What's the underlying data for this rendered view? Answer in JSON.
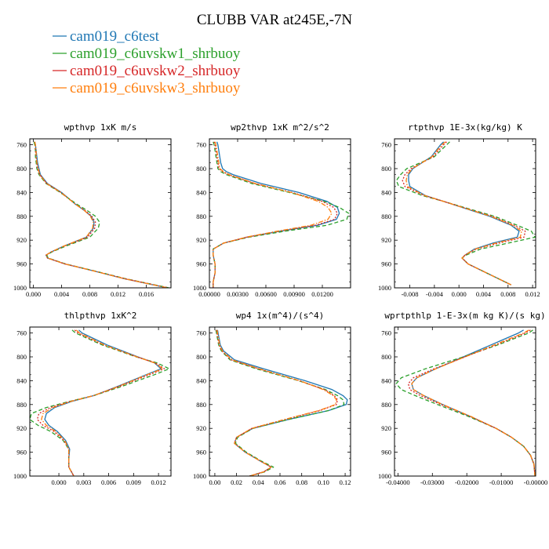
{
  "figure": {
    "title": "CLUBB VAR at245E,-7N"
  },
  "series": [
    {
      "name": "cam019_c6test",
      "color": "#1f77b4",
      "dash": "solid"
    },
    {
      "name": "cam019_c6uvskw1_shrbuoy",
      "color": "#2ca02c",
      "dash": "dash"
    },
    {
      "name": "cam019_c6uvskw2_shrbuoy",
      "color": "#d62728",
      "dash": "dot"
    },
    {
      "name": "cam019_c6uvskw3_shrbuoy",
      "color": "#ff7f0e",
      "dash": "dashdot"
    }
  ],
  "chart_data": [
    {
      "type": "line",
      "title": "wpthvp  1xK m/s",
      "ylim": [
        1000,
        750
      ],
      "yticks": [
        760,
        800,
        840,
        880,
        920,
        960,
        1000
      ],
      "xlim": [
        -0.0005,
        0.0195
      ],
      "xticks": [
        0.0,
        0.004,
        0.008,
        0.012,
        0.016
      ],
      "xticklabels": [
        "0.000",
        "0.004",
        "0.008",
        "0.012",
        "0.016"
      ],
      "y": [
        755,
        760,
        770,
        780,
        790,
        800,
        810,
        825,
        840,
        860,
        870,
        880,
        890,
        900,
        915,
        930,
        940,
        945,
        950,
        960,
        970,
        985,
        1000
      ],
      "series": [
        {
          "name": "cam019_c6test",
          "values": [
            0.0002,
            0.0003,
            0.0004,
            0.0005,
            0.0006,
            0.0008,
            0.001,
            0.002,
            0.004,
            0.006,
            0.0072,
            0.0082,
            0.0086,
            0.0085,
            0.0075,
            0.0043,
            0.0025,
            0.0018,
            0.002,
            0.0045,
            0.008,
            0.013,
            0.019
          ]
        },
        {
          "name": "cam019_c6uvskw1_shrbuoy",
          "values": [
            0.0001,
            0.0002,
            0.0003,
            0.0003,
            0.0004,
            0.0005,
            0.0008,
            0.0018,
            0.0038,
            0.0062,
            0.0076,
            0.0088,
            0.0094,
            0.0092,
            0.008,
            0.0046,
            0.0026,
            0.0019,
            0.0021,
            0.0046,
            0.0081,
            0.0132,
            0.0192
          ]
        },
        {
          "name": "cam019_c6uvskw2_shrbuoy",
          "values": [
            0.0002,
            0.0003,
            0.0003,
            0.0004,
            0.0005,
            0.0006,
            0.0009,
            0.0019,
            0.0039,
            0.006,
            0.0073,
            0.0083,
            0.0088,
            0.0087,
            0.0077,
            0.0044,
            0.0025,
            0.0018,
            0.002,
            0.0045,
            0.008,
            0.0131,
            0.0191
          ]
        },
        {
          "name": "cam019_c6uvskw3_shrbuoy",
          "values": [
            0.0002,
            0.0003,
            0.0004,
            0.0004,
            0.0005,
            0.0007,
            0.0009,
            0.0019,
            0.0039,
            0.006,
            0.0072,
            0.0081,
            0.0085,
            0.0084,
            0.0075,
            0.0043,
            0.0025,
            0.0018,
            0.002,
            0.0045,
            0.008,
            0.013,
            0.019
          ]
        }
      ]
    },
    {
      "type": "line",
      "title": "wp2thvp  1xK m^2/s^2",
      "ylim": [
        1000,
        750
      ],
      "yticks": [
        760,
        800,
        840,
        880,
        920,
        960,
        1000
      ],
      "xlim": [
        0.0,
        0.015
      ],
      "xticks": [
        0.0,
        0.003,
        0.006,
        0.009,
        0.012
      ],
      "xticklabels": [
        "0.00000",
        "0.00300",
        "0.00600",
        "0.00900",
        "0.01200"
      ],
      "y": [
        755,
        760,
        770,
        780,
        790,
        800,
        805,
        810,
        825,
        840,
        855,
        865,
        875,
        885,
        895,
        905,
        915,
        925,
        935,
        945,
        960,
        975,
        990,
        1000
      ],
      "series": [
        {
          "name": "cam019_c6test",
          "values": [
            0.0008,
            0.0009,
            0.001,
            0.0011,
            0.0012,
            0.0014,
            0.0018,
            0.0025,
            0.0055,
            0.0095,
            0.0125,
            0.0136,
            0.0138,
            0.0135,
            0.0115,
            0.0075,
            0.004,
            0.0015,
            0.0004,
            0.0004,
            0.0006,
            0.0006,
            0.0004,
            0.0004
          ]
        },
        {
          "name": "cam019_c6uvskw1_shrbuoy",
          "values": [
            0.0004,
            0.0005,
            0.0006,
            0.0007,
            0.0008,
            0.0009,
            0.0012,
            0.0018,
            0.0045,
            0.0085,
            0.0122,
            0.0138,
            0.0148,
            0.0146,
            0.0125,
            0.008,
            0.0042,
            0.0015,
            0.0004,
            0.0004,
            0.0006,
            0.0006,
            0.0004,
            0.0004
          ]
        },
        {
          "name": "cam019_c6uvskw2_shrbuoy",
          "values": [
            0.0005,
            0.0006,
            0.0007,
            0.0008,
            0.0009,
            0.001,
            0.0014,
            0.002,
            0.0048,
            0.0088,
            0.012,
            0.0132,
            0.0136,
            0.0133,
            0.0113,
            0.0074,
            0.004,
            0.0015,
            0.0004,
            0.0004,
            0.0006,
            0.0006,
            0.0004,
            0.0004
          ]
        },
        {
          "name": "cam019_c6uvskw3_shrbuoy",
          "values": [
            0.0006,
            0.0007,
            0.0008,
            0.0009,
            0.001,
            0.0011,
            0.0015,
            0.0021,
            0.0049,
            0.0087,
            0.0116,
            0.0126,
            0.013,
            0.0126,
            0.0108,
            0.0072,
            0.0039,
            0.0015,
            0.0004,
            0.0004,
            0.0006,
            0.0006,
            0.0004,
            0.0004
          ]
        }
      ]
    },
    {
      "type": "line",
      "title": "rtpthvp  1E-3x(kg/kg) K",
      "ylim": [
        1000,
        750
      ],
      "yticks": [
        760,
        800,
        840,
        880,
        920,
        960,
        1000
      ],
      "xlim": [
        -0.0105,
        0.0125
      ],
      "xticks": [
        -0.008,
        -0.004,
        0.0,
        0.004,
        0.008,
        0.012
      ],
      "xticklabels": [
        "-0.008",
        "-0.004",
        "0.000",
        "0.004",
        "0.008",
        "0.012"
      ],
      "y": [
        755,
        760,
        780,
        800,
        810,
        820,
        830,
        845,
        855,
        870,
        880,
        895,
        905,
        915,
        925,
        935,
        945,
        950,
        960,
        975,
        995
      ],
      "series": [
        {
          "name": "cam019_c6test",
          "values": [
            -0.0025,
            -0.003,
            -0.0045,
            -0.0075,
            -0.0082,
            -0.0082,
            -0.008,
            -0.0055,
            -0.0025,
            0.002,
            0.005,
            0.0085,
            0.0098,
            0.0095,
            0.0055,
            0.0025,
            0.001,
            0.0005,
            0.0015,
            0.0045,
            0.0085
          ]
        },
        {
          "name": "cam019_c6uvskw1_shrbuoy",
          "values": [
            -0.0015,
            -0.002,
            -0.004,
            -0.0085,
            -0.0095,
            -0.0102,
            -0.0098,
            -0.006,
            -0.0025,
            0.0025,
            0.0058,
            0.0095,
            0.0118,
            0.0124,
            0.008,
            0.0035,
            0.0012,
            0.0005,
            0.0015,
            0.0045,
            0.0085
          ]
        },
        {
          "name": "cam019_c6uvskw2_shrbuoy",
          "values": [
            -0.002,
            -0.0025,
            -0.0042,
            -0.0078,
            -0.0088,
            -0.0092,
            -0.0088,
            -0.0057,
            -0.0025,
            0.0022,
            0.0054,
            0.009,
            0.0108,
            0.0106,
            0.0065,
            0.0028,
            0.001,
            0.0005,
            0.0015,
            0.0045,
            0.0085
          ]
        },
        {
          "name": "cam019_c6uvskw3_shrbuoy",
          "values": [
            -0.0022,
            -0.0028,
            -0.0044,
            -0.0076,
            -0.0084,
            -0.0086,
            -0.0084,
            -0.0056,
            -0.0025,
            0.0021,
            0.0052,
            0.0087,
            0.0102,
            0.01,
            0.006,
            0.0026,
            0.001,
            0.0005,
            0.0015,
            0.0045,
            0.0085
          ]
        }
      ]
    },
    {
      "type": "line",
      "title": "thlpthvp  1xK^2",
      "ylim": [
        1000,
        750
      ],
      "yticks": [
        760,
        800,
        840,
        880,
        920,
        960,
        1000
      ],
      "xlim": [
        -0.0035,
        0.0135
      ],
      "xticks": [
        0.0,
        0.003,
        0.006,
        0.009,
        0.012
      ],
      "xticklabels": [
        "0.000",
        "0.003",
        "0.006",
        "0.009",
        "0.012"
      ],
      "y": [
        755,
        760,
        780,
        800,
        810,
        820,
        830,
        850,
        865,
        875,
        885,
        895,
        905,
        915,
        925,
        940,
        955,
        970,
        985,
        1000
      ],
      "series": [
        {
          "name": "cam019_c6test",
          "values": [
            0.0024,
            0.0028,
            0.0058,
            0.0095,
            0.0115,
            0.0123,
            0.0105,
            0.007,
            0.0042,
            0.0015,
            -0.0005,
            -0.0015,
            -0.0017,
            -0.0012,
            -0.0002,
            0.0008,
            0.0013,
            0.0012,
            0.0012,
            0.0018
          ]
        },
        {
          "name": "cam019_c6uvskw1_shrbuoy",
          "values": [
            0.0016,
            0.002,
            0.0052,
            0.0093,
            0.0118,
            0.0133,
            0.0115,
            0.0075,
            0.0042,
            0.0012,
            -0.0015,
            -0.0033,
            -0.0035,
            -0.0025,
            -0.001,
            0.0005,
            0.0012,
            0.0012,
            0.0012,
            0.0018
          ]
        },
        {
          "name": "cam019_c6uvskw2_shrbuoy",
          "values": [
            0.0019,
            0.0023,
            0.0054,
            0.0094,
            0.0116,
            0.0127,
            0.0109,
            0.0072,
            0.0042,
            0.0013,
            -0.001,
            -0.0024,
            -0.0026,
            -0.0019,
            -0.0006,
            0.0006,
            0.0012,
            0.0012,
            0.0012,
            0.0018
          ]
        },
        {
          "name": "cam019_c6uvskw3_shrbuoy",
          "values": [
            0.0021,
            0.0025,
            0.0055,
            0.0094,
            0.0115,
            0.0125,
            0.0106,
            0.0071,
            0.0042,
            0.0014,
            -0.0007,
            -0.0019,
            -0.0021,
            -0.0015,
            -0.0004,
            0.0007,
            0.0012,
            0.0012,
            0.0012,
            0.0018
          ]
        }
      ]
    },
    {
      "type": "line",
      "title": "wp4  1x(m^4)/(s^4)",
      "ylim": [
        1000,
        750
      ],
      "yticks": [
        760,
        800,
        840,
        880,
        920,
        960,
        1000
      ],
      "xlim": [
        -0.005,
        0.125
      ],
      "xticks": [
        0.0,
        0.02,
        0.04,
        0.06,
        0.08,
        0.1,
        0.12
      ],
      "xticklabels": [
        "0.00",
        "0.02",
        "0.04",
        "0.06",
        "0.08",
        "0.10",
        "0.12"
      ],
      "y": [
        755,
        760,
        770,
        780,
        790,
        805,
        820,
        840,
        855,
        865,
        872,
        880,
        890,
        905,
        920,
        935,
        945,
        960,
        975,
        985,
        993,
        1000
      ],
      "series": [
        {
          "name": "cam019_c6test",
          "values": [
            0.0025,
            0.003,
            0.004,
            0.005,
            0.008,
            0.018,
            0.045,
            0.083,
            0.108,
            0.118,
            0.122,
            0.121,
            0.105,
            0.068,
            0.035,
            0.02,
            0.018,
            0.028,
            0.042,
            0.052,
            0.045,
            0.032
          ]
        },
        {
          "name": "cam019_c6uvskw1_shrbuoy",
          "values": [
            0.001,
            0.0015,
            0.0025,
            0.0035,
            0.006,
            0.014,
            0.038,
            0.077,
            0.102,
            0.113,
            0.118,
            0.119,
            0.105,
            0.068,
            0.035,
            0.021,
            0.019,
            0.029,
            0.043,
            0.054,
            0.046,
            0.032
          ]
        },
        {
          "name": "cam019_c6uvskw2_shrbuoy",
          "values": [
            0.0015,
            0.002,
            0.003,
            0.004,
            0.0065,
            0.015,
            0.04,
            0.078,
            0.101,
            0.11,
            0.113,
            0.112,
            0.097,
            0.065,
            0.034,
            0.02,
            0.018,
            0.028,
            0.042,
            0.052,
            0.045,
            0.032
          ]
        },
        {
          "name": "cam019_c6uvskw3_shrbuoy",
          "values": [
            0.002,
            0.0025,
            0.0035,
            0.0045,
            0.007,
            0.016,
            0.041,
            0.078,
            0.1,
            0.109,
            0.112,
            0.111,
            0.096,
            0.064,
            0.034,
            0.02,
            0.018,
            0.028,
            0.042,
            0.052,
            0.045,
            0.032
          ]
        }
      ]
    },
    {
      "type": "line",
      "title": "wprtpthlp  1-E-3x(m kg K)/(s kg)",
      "ylim": [
        1000,
        750
      ],
      "yticks": [
        760,
        800,
        840,
        880,
        920,
        960,
        1000
      ],
      "xlim": [
        -0.041,
        0.0
      ],
      "xticks": [
        -0.04,
        -0.03,
        -0.02,
        -0.01,
        0.0
      ],
      "xticklabels": [
        "-0.04000",
        "-0.03000",
        "-0.02000",
        "-0.01000",
        "-0.00000"
      ],
      "y": [
        755,
        760,
        780,
        800,
        820,
        835,
        845,
        855,
        865,
        880,
        900,
        920,
        935,
        950,
        965,
        980,
        1000
      ],
      "series": [
        {
          "name": "cam019_c6test",
          "values": [
            -0.0035,
            -0.005,
            -0.013,
            -0.021,
            -0.029,
            -0.0345,
            -0.036,
            -0.0355,
            -0.0325,
            -0.027,
            -0.019,
            -0.0115,
            -0.007,
            -0.0035,
            -0.0015,
            -0.0005,
            -0.0002
          ]
        },
        {
          "name": "cam019_c6uvskw1_shrbuoy",
          "values": [
            -0.0008,
            -0.002,
            -0.011,
            -0.021,
            -0.032,
            -0.039,
            -0.0405,
            -0.039,
            -0.035,
            -0.0285,
            -0.0195,
            -0.0115,
            -0.007,
            -0.0035,
            -0.0015,
            -0.0005,
            -0.0002
          ]
        },
        {
          "name": "cam019_c6uvskw2_shrbuoy",
          "values": [
            -0.0015,
            -0.003,
            -0.0115,
            -0.0205,
            -0.0295,
            -0.0355,
            -0.037,
            -0.0365,
            -0.0335,
            -0.0275,
            -0.019,
            -0.0115,
            -0.007,
            -0.0035,
            -0.0015,
            -0.0005,
            -0.0002
          ]
        },
        {
          "name": "cam019_c6uvskw3_shrbuoy",
          "values": [
            -0.002,
            -0.0035,
            -0.012,
            -0.0205,
            -0.029,
            -0.0345,
            -0.036,
            -0.0355,
            -0.0325,
            -0.027,
            -0.0188,
            -0.0115,
            -0.007,
            -0.0035,
            -0.0015,
            -0.0005,
            -0.0002
          ]
        }
      ]
    }
  ]
}
